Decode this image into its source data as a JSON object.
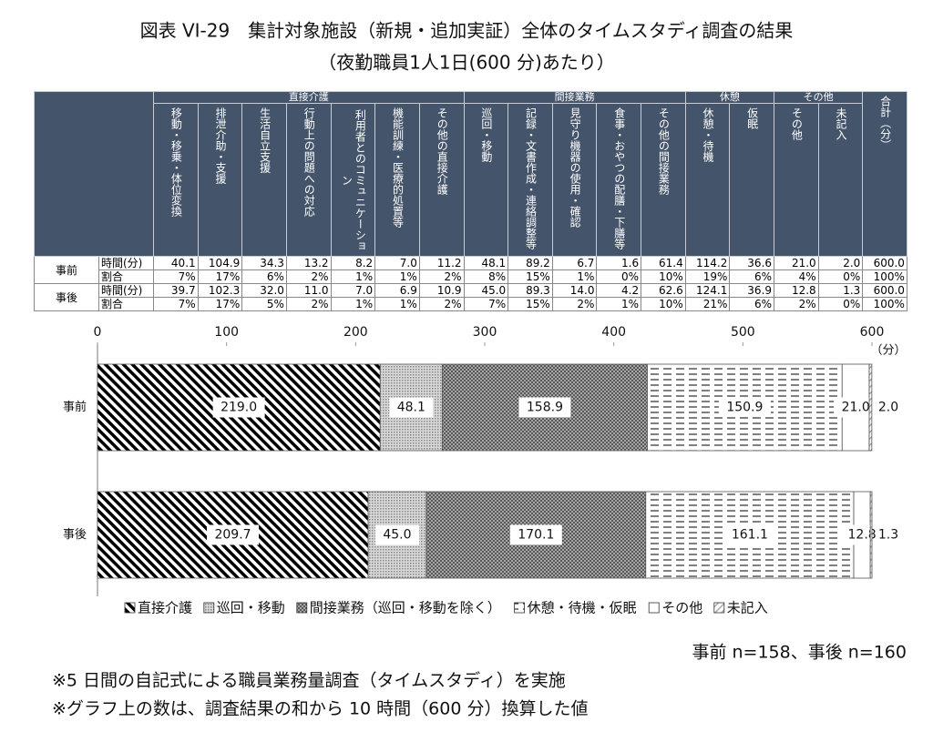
{
  "title": "図表 VI-29　集計対象施設（新規・追加実証）全体のタイムスタディ調査の結果",
  "subtitle": "（夜勤職員1人1日(600 分)あたり）",
  "table": {
    "groups": [
      {
        "label": "直接介護",
        "columns": [
          "移動・移乗・体位変換",
          "排泄介助・支援",
          "生活自立支援",
          "行動上の問題への対応",
          "利用者とのコミュニケーション",
          "機能訓練・医療的処置等",
          "その他の直接介護"
        ]
      },
      {
        "label": "間接業務",
        "columns": [
          "巡回・移動",
          "記録・文書作成・連絡調整等",
          "見守り機器の使用・確認",
          "食事・おやつの配膳・下膳等",
          "その他の間接業務"
        ]
      },
      {
        "label": "休憩",
        "columns": [
          "休憩・待機",
          "仮眠"
        ]
      },
      {
        "label": "その他",
        "columns": [
          "その他",
          "未記入"
        ]
      }
    ],
    "total_header": "合計（分）",
    "rows": [
      {
        "label": "事前",
        "subrows": [
          {
            "label": "時間(分)",
            "cells": [
              "40.1",
              "104.9",
              "34.3",
              "13.2",
              "8.2",
              "7.0",
              "11.2",
              "48.1",
              "89.2",
              "6.7",
              "1.6",
              "61.4",
              "114.2",
              "36.6",
              "21.0",
              "2.0",
              "600.0"
            ]
          },
          {
            "label": "割合",
            "cells": [
              "7%",
              "17%",
              "6%",
              "2%",
              "1%",
              "1%",
              "2%",
              "8%",
              "15%",
              "1%",
              "0%",
              "10%",
              "19%",
              "6%",
              "4%",
              "0%",
              "100%"
            ]
          }
        ]
      },
      {
        "label": "事後",
        "subrows": [
          {
            "label": "時間(分)",
            "cells": [
              "39.7",
              "102.3",
              "32.0",
              "11.0",
              "7.0",
              "6.9",
              "10.9",
              "45.0",
              "89.3",
              "14.0",
              "4.2",
              "62.6",
              "124.1",
              "36.9",
              "12.8",
              "1.3",
              "600.0"
            ]
          },
          {
            "label": "割合",
            "cells": [
              "7%",
              "17%",
              "5%",
              "2%",
              "1%",
              "1%",
              "2%",
              "7%",
              "15%",
              "2%",
              "1%",
              "10%",
              "21%",
              "6%",
              "2%",
              "0%",
              "100%"
            ]
          }
        ]
      }
    ]
  },
  "chart_data": {
    "type": "bar",
    "orientation": "horizontal",
    "stacked": true,
    "categories": [
      "事前",
      "事後"
    ],
    "xlim": [
      0,
      600
    ],
    "xticks": [
      0,
      100,
      200,
      300,
      400,
      500,
      600
    ],
    "xlabel": "（分）",
    "grid": false,
    "legend": "bottom",
    "series": [
      {
        "name": "直接介護",
        "pattern": "diagonal-dense",
        "color": "#000000",
        "values": [
          219.0,
          209.7
        ],
        "value_labels": [
          "219.0",
          "209.7"
        ]
      },
      {
        "name": "巡回・移動",
        "pattern": "dots",
        "color": "#bbbbbb",
        "values": [
          48.1,
          45.0
        ],
        "value_labels": [
          "48.1",
          "45.0"
        ]
      },
      {
        "name": "間接業務（巡回・移動を除く）",
        "pattern": "crosshatch",
        "color": "#888888",
        "values": [
          158.9,
          170.1
        ],
        "value_labels": [
          "158.9",
          "170.1"
        ]
      },
      {
        "name": "休憩・待機・仮眠",
        "pattern": "dashes",
        "color": "#000000",
        "values": [
          150.9,
          161.1
        ],
        "value_labels": [
          "150.9",
          "161.1"
        ]
      },
      {
        "name": "その他",
        "pattern": "none",
        "color": "#ffffff",
        "values": [
          21.0,
          12.8
        ],
        "value_labels": [
          "21.0",
          "12.8"
        ]
      },
      {
        "name": "未記入",
        "pattern": "diagonal-light",
        "color": "#bbbbbb",
        "values": [
          2.0,
          1.3
        ],
        "value_labels": [
          "2.0",
          "1.3"
        ]
      }
    ]
  },
  "notes": [
    "事前 n=158、事後 n=160",
    "※5 日間の自記式による職員業務量調査（タイムスタディ）を実施",
    "※グラフ上の数は、調査結果の和から 10 時間（600 分）換算した値"
  ]
}
